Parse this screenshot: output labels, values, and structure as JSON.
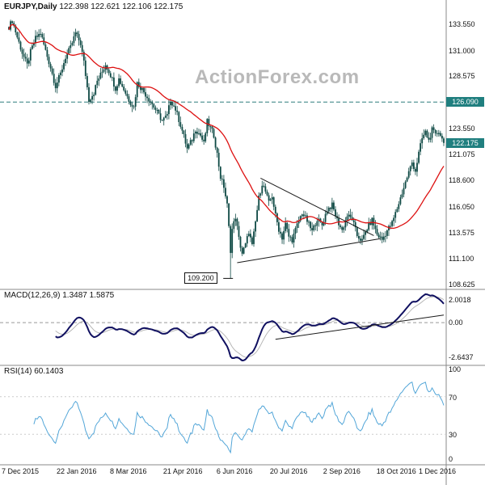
{
  "header": {
    "symbol_timeframe": "EURJPY,Daily",
    "ohlc": "122.398 122.621 122.106 122.175"
  },
  "watermark": "ActionForex.com",
  "colors": {
    "candle": "#0e4944",
    "ma": "#dd1111",
    "macd_main": "#101060",
    "macd_signal": "#b0b0b0",
    "rsi": "#53a6d8",
    "tag_bg": "#207f7f",
    "separator": "#888888",
    "trendline": "#1a1a1a",
    "resistance_line": "#2e7d7d",
    "level_dotted": "#cccccc"
  },
  "chart_data": {
    "type": "candlestick",
    "title": "EURJPY,Daily",
    "ohlc": {
      "open": 122.398,
      "high": 122.621,
      "low": 122.106,
      "close": 122.175
    },
    "x_axis": {
      "total_days": 262,
      "tick_labels": [
        "7 Dec 2015",
        "22 Jan 2016",
        "8 Mar 2016",
        "21 Apr 2016",
        "6 Jun 2016",
        "20 Jul 2016",
        "2 Sep 2016",
        "18 Oct 2016",
        "1 Dec 2016"
      ],
      "tick_days": [
        0,
        33,
        65,
        97,
        129,
        161,
        193,
        225,
        253
      ]
    },
    "price_axis": {
      "top_price": 135.4,
      "bottom_price": 108.3,
      "labels": [
        "133.550",
        "131.000",
        "128.575",
        "123.550",
        "121.075",
        "118.600",
        "116.050",
        "113.575",
        "111.100",
        "108.625"
      ]
    },
    "key_levels": {
      "resistance": 126.09,
      "resistance_label": "126.090",
      "current": 122.175,
      "current_label": "122.175",
      "low_price": 109.2,
      "low_label": "109.200",
      "low_day": 133
    },
    "ma_period": 34,
    "price_anchors": [
      [
        0,
        133.3
      ],
      [
        2,
        133.9
      ],
      [
        5,
        132.3
      ],
      [
        8,
        130.8
      ],
      [
        11,
        129.6
      ],
      [
        13,
        130.9
      ],
      [
        16,
        132.2
      ],
      [
        19,
        132.7
      ],
      [
        22,
        131.0
      ],
      [
        25,
        129.4
      ],
      [
        28,
        127.6
      ],
      [
        31,
        128.8
      ],
      [
        34,
        130.4
      ],
      [
        37,
        131.3
      ],
      [
        40,
        132.7
      ],
      [
        43,
        131.7
      ],
      [
        45,
        129.9
      ],
      [
        48,
        126.3
      ],
      [
        51,
        127.0
      ],
      [
        53,
        128.1
      ],
      [
        56,
        129.0
      ],
      [
        58,
        129.7
      ],
      [
        61,
        128.7
      ],
      [
        64,
        127.4
      ],
      [
        66,
        128.3
      ],
      [
        69,
        127.3
      ],
      [
        72,
        126.3
      ],
      [
        75,
        125.6
      ],
      [
        77,
        127.9
      ],
      [
        80,
        127.3
      ],
      [
        83,
        126.6
      ],
      [
        86,
        125.9
      ],
      [
        89,
        125.1
      ],
      [
        92,
        124.3
      ],
      [
        95,
        124.8
      ],
      [
        97,
        126.3
      ],
      [
        100,
        125.4
      ],
      [
        103,
        123.9
      ],
      [
        105,
        122.8
      ],
      [
        107,
        121.6
      ],
      [
        110,
        122.5
      ],
      [
        112,
        123.5
      ],
      [
        115,
        122.9
      ],
      [
        117,
        122.1
      ],
      [
        119,
        124.2
      ],
      [
        121,
        123.6
      ],
      [
        123,
        122.9
      ],
      [
        125,
        121.1
      ],
      [
        127,
        118.9
      ],
      [
        129,
        118.0
      ],
      [
        131,
        116.2
      ],
      [
        133,
        111.9
      ],
      [
        134,
        113.9
      ],
      [
        136,
        115.1
      ],
      [
        138,
        113.0
      ],
      [
        140,
        111.6
      ],
      [
        142,
        112.4
      ],
      [
        144,
        113.7
      ],
      [
        146,
        112.3
      ],
      [
        148,
        114.6
      ],
      [
        150,
        116.9
      ],
      [
        152,
        118.3
      ],
      [
        154,
        117.5
      ],
      [
        156,
        116.4
      ],
      [
        158,
        117.1
      ],
      [
        160,
        115.2
      ],
      [
        162,
        113.9
      ],
      [
        164,
        113.1
      ],
      [
        166,
        114.4
      ],
      [
        168,
        113.2
      ],
      [
        170,
        112.9
      ],
      [
        173,
        114.3
      ],
      [
        176,
        115.5
      ],
      [
        179,
        114.7
      ],
      [
        182,
        113.7
      ],
      [
        185,
        114.9
      ],
      [
        188,
        114.3
      ],
      [
        191,
        115.8
      ],
      [
        194,
        116.2
      ],
      [
        197,
        114.8
      ],
      [
        200,
        113.8
      ],
      [
        203,
        115.2
      ],
      [
        206,
        114.9
      ],
      [
        209,
        113.3
      ],
      [
        212,
        112.8
      ],
      [
        215,
        114.0
      ],
      [
        218,
        114.8
      ],
      [
        221,
        113.4
      ],
      [
        224,
        112.9
      ],
      [
        227,
        113.8
      ],
      [
        230,
        114.5
      ],
      [
        233,
        115.9
      ],
      [
        236,
        117.4
      ],
      [
        239,
        118.9
      ],
      [
        242,
        120.3
      ],
      [
        244,
        119.5
      ],
      [
        246,
        121.2
      ],
      [
        248,
        122.6
      ],
      [
        250,
        123.2
      ],
      [
        252,
        122.4
      ],
      [
        254,
        123.4
      ],
      [
        256,
        122.9
      ],
      [
        258,
        123.3
      ],
      [
        260,
        122.6
      ],
      [
        261,
        122.175
      ]
    ],
    "trendlines": [
      {
        "d1": 151,
        "p1": 118.8,
        "d2": 219,
        "p2": 113.3
      },
      {
        "d1": 137,
        "p1": 110.7,
        "d2": 223,
        "p2": 113.0
      }
    ],
    "macd": {
      "label": "MACD(12,26,9)",
      "values": "1.3487 1.5875",
      "params": [
        12,
        26,
        9
      ],
      "axis": {
        "top": "2.0018",
        "zero": "0.00",
        "bottom": "-2.6437"
      },
      "trendline": {
        "d1": 160,
        "v1": -1.2,
        "d2": 261,
        "v2": 0.55
      }
    },
    "rsi": {
      "label": "RSI(14)",
      "value": "60.1403",
      "period": 14,
      "axis": [
        "100",
        "70",
        "30",
        "0"
      ],
      "levels": [
        70,
        30
      ]
    }
  }
}
